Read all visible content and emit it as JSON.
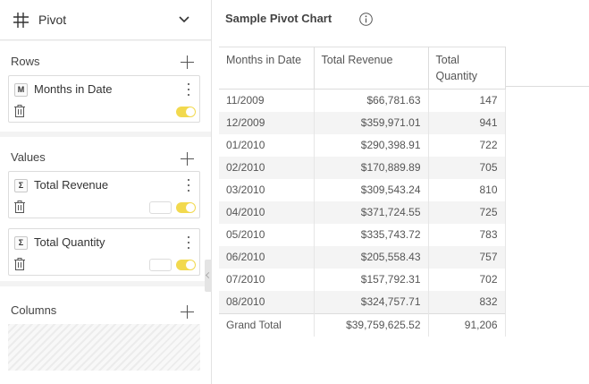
{
  "pivot_bar": {
    "title": "Pivot",
    "icon": "grid-icon"
  },
  "rows_section": {
    "label": "Rows",
    "fields": [
      {
        "badge": "M",
        "name": "Months in Date",
        "toggle_on": true
      }
    ]
  },
  "values_section": {
    "label": "Values",
    "fields": [
      {
        "badge": "Σ",
        "name": "Total Revenue",
        "toggle_on": true
      },
      {
        "badge": "Σ",
        "name": "Total Quantity",
        "toggle_on": true
      }
    ]
  },
  "columns_section": {
    "label": "Columns"
  },
  "chart": {
    "title": "Sample Pivot Chart"
  },
  "table": {
    "headers": [
      "Months in Date",
      "Total Revenue",
      "Total Quantity"
    ],
    "rows": [
      [
        "11/2009",
        "$66,781.63",
        "147"
      ],
      [
        "12/2009",
        "$359,971.01",
        "941"
      ],
      [
        "01/2010",
        "$290,398.91",
        "722"
      ],
      [
        "02/2010",
        "$170,889.89",
        "705"
      ],
      [
        "03/2010",
        "$309,543.24",
        "810"
      ],
      [
        "04/2010",
        "$371,724.55",
        "725"
      ],
      [
        "05/2010",
        "$335,743.72",
        "783"
      ],
      [
        "06/2010",
        "$205,558.43",
        "757"
      ],
      [
        "07/2010",
        "$157,792.31",
        "702"
      ],
      [
        "08/2010",
        "$324,757.71",
        "832"
      ]
    ],
    "footer": [
      "Grand Total",
      "$39,759,625.52",
      "91,206"
    ]
  },
  "colors": {
    "accent_toggle": "#f2d94e",
    "panel_bg": "#f3f3f3",
    "row_stripe": "#f4f4f4"
  }
}
